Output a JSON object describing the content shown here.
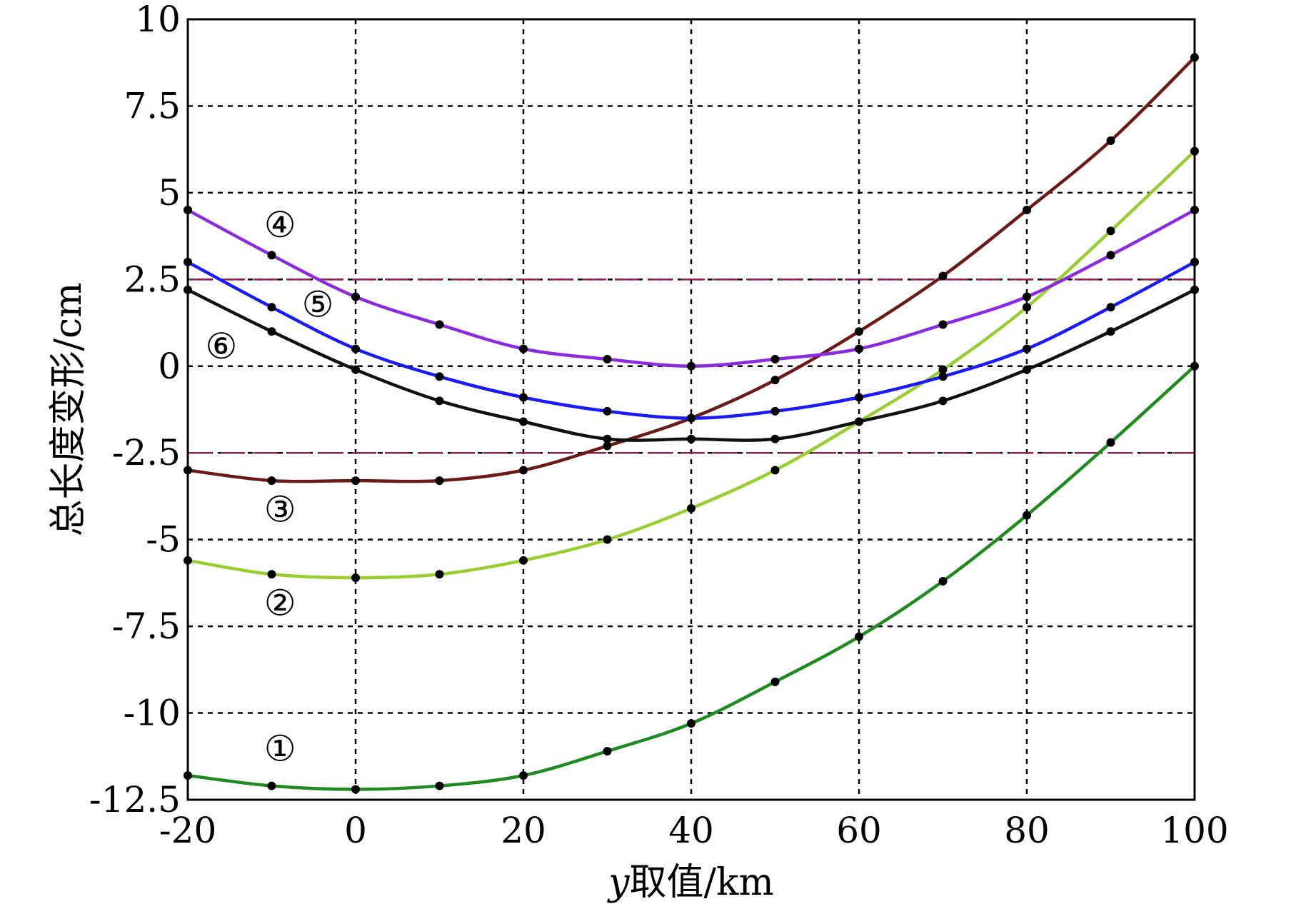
{
  "chart_data": {
    "type": "line",
    "xlabel_var": "y",
    "xlabel_rest": "取值/km",
    "ylabel": "总长度变形/cm",
    "xlim": [
      -20,
      100
    ],
    "ylim": [
      -12.5,
      10
    ],
    "xticks": [
      -20,
      0,
      20,
      40,
      60,
      80,
      100
    ],
    "yticks": [
      10,
      7.5,
      5,
      2.5,
      0,
      -2.5,
      -5,
      -7.5,
      -10,
      -12.5
    ],
    "grid": true,
    "reference_lines": [
      2.5,
      -2.5
    ],
    "reference_color": "#8b2252",
    "x": [
      -20,
      -10,
      0,
      10,
      20,
      30,
      40,
      50,
      60,
      70,
      80,
      90,
      100
    ],
    "series": [
      {
        "label": "①",
        "color": "#1f8a1f",
        "label_pos": [
          -9,
          -11.1
        ],
        "values": [
          -11.8,
          -12.1,
          -12.2,
          -12.1,
          -11.8,
          -11.1,
          -10.3,
          -9.1,
          -7.8,
          -6.2,
          -4.3,
          -2.2,
          0.0
        ]
      },
      {
        "label": "②",
        "color": "#9acd32",
        "label_pos": [
          -9,
          -6.9
        ],
        "values": [
          -5.6,
          -6.0,
          -6.1,
          -6.0,
          -5.6,
          -5.0,
          -4.1,
          -3.0,
          -1.6,
          -0.1,
          1.7,
          3.9,
          6.2
        ]
      },
      {
        "label": "③",
        "color": "#6b1a1a",
        "label_pos": [
          -9,
          -4.2
        ],
        "values": [
          -3.0,
          -3.3,
          -3.3,
          -3.3,
          -3.0,
          -2.3,
          -1.5,
          -0.4,
          1.0,
          2.6,
          4.5,
          6.5,
          8.9
        ]
      },
      {
        "label": "④",
        "color": "#8a2be2",
        "label_pos": [
          -9,
          4.0
        ],
        "values": [
          4.5,
          3.2,
          2.0,
          1.2,
          0.5,
          0.2,
          0.0,
          0.2,
          0.5,
          1.2,
          2.0,
          3.2,
          4.5
        ]
      },
      {
        "label": "⑤",
        "color": "#1a1aff",
        "label_pos": [
          -4.5,
          1.7
        ],
        "values": [
          3.0,
          1.7,
          0.5,
          -0.3,
          -0.9,
          -1.3,
          -1.5,
          -1.3,
          -0.9,
          -0.3,
          0.5,
          1.7,
          3.0
        ]
      },
      {
        "label": "⑥",
        "color": "#111111",
        "label_pos": [
          -16,
          0.5
        ],
        "values": [
          2.2,
          1.0,
          -0.1,
          -1.0,
          -1.6,
          -2.1,
          -2.1,
          -2.1,
          -1.6,
          -1.0,
          -0.1,
          1.0,
          2.2
        ]
      }
    ]
  }
}
